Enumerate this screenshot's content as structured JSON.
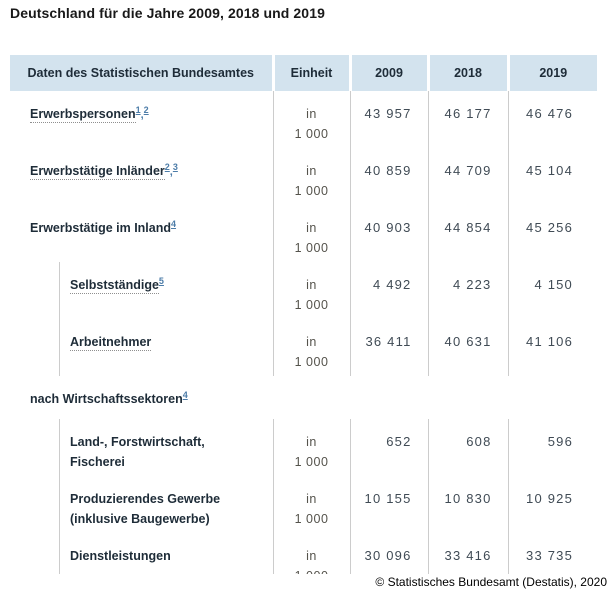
{
  "title": "Deutschland für die Jahre 2009, 2018 und 2019",
  "copyright": "© Statistisches Bundesamt (Destatis), 2020",
  "colors": {
    "header_bg": "#d3e3ee",
    "text_dark": "#1e2c38",
    "value_text": "#404b55",
    "unit_text": "#55534c",
    "link_blue": "#4c7ca8",
    "grid_line": "#cccccc"
  },
  "table": {
    "headers": [
      "Daten des Statistischen Bundesamtes",
      "Einheit",
      "2009",
      "2018",
      "2019"
    ],
    "unit_lines": [
      "in",
      "1 000"
    ],
    "rows": [
      {
        "type": "data",
        "indent": false,
        "dotted": true,
        "label": [
          "Erwerbspersonen"
        ],
        "sups": [
          "1",
          "2"
        ],
        "values": [
          "43 957",
          "46 177",
          "46 476"
        ]
      },
      {
        "type": "data",
        "indent": false,
        "dotted": true,
        "label": [
          "Erwerbstätige Inländer"
        ],
        "sups": [
          "2",
          "3"
        ],
        "values": [
          "40 859",
          "44 709",
          "45 104"
        ]
      },
      {
        "type": "data",
        "indent": false,
        "dotted": false,
        "label": [
          "Erwerbstätige im Inland"
        ],
        "sups": [
          "4"
        ],
        "values": [
          "40 903",
          "44 854",
          "45 256"
        ]
      },
      {
        "type": "data",
        "indent": true,
        "dotted": true,
        "label": [
          "Selbstständige"
        ],
        "sups": [
          "5"
        ],
        "values": [
          "4 492",
          "4 223",
          "4 150"
        ]
      },
      {
        "type": "data",
        "indent": true,
        "dotted": true,
        "label": [
          "Arbeitnehmer"
        ],
        "sups": [],
        "values": [
          "36 411",
          "40 631",
          "41 106"
        ]
      },
      {
        "type": "section",
        "dotted": false,
        "label": [
          "nach Wirtschaftssektoren"
        ],
        "sups": [
          "4"
        ]
      },
      {
        "type": "data",
        "indent": true,
        "dotted": false,
        "label": [
          "Land-, Forstwirtschaft,",
          "Fischerei"
        ],
        "sups": [],
        "values": [
          "652",
          "608",
          "596"
        ]
      },
      {
        "type": "data",
        "indent": true,
        "dotted": false,
        "label": [
          "Produzierendes Gewerbe",
          "(inklusive Baugewerbe)"
        ],
        "sups": [],
        "values": [
          "10 155",
          "10 830",
          "10 925"
        ]
      },
      {
        "type": "data",
        "indent": true,
        "dotted": false,
        "label": [
          "Dienstleistungen"
        ],
        "sups": [],
        "values": [
          "30 096",
          "33 416",
          "33 735"
        ]
      }
    ]
  }
}
